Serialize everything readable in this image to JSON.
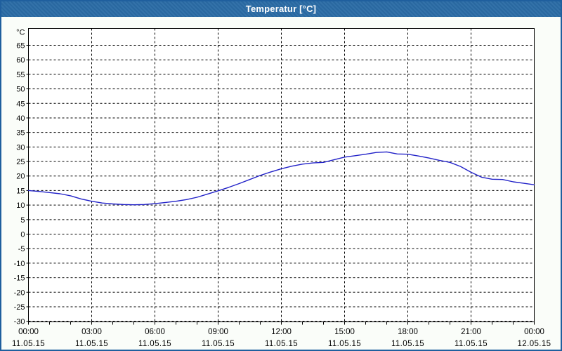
{
  "window": {
    "title": "Temperatur [°C]"
  },
  "colors": {
    "titlebar": "#2b6ca6",
    "window_border": "#1f5f9e",
    "background": "#fafdf9",
    "plot_background": "#ffffff",
    "grid": "#000000",
    "axis": "#000000",
    "curve": "#2222c8",
    "tick_text": "#000000",
    "title_text": "#ffffff"
  },
  "chart_data": {
    "type": "line",
    "title": "Temperatur [°C]",
    "ylabel": "°C",
    "y_unit_label": "°C",
    "ylim": [
      -30.2,
      70.8
    ],
    "y_ticks": [
      65,
      60,
      55,
      50,
      45,
      40,
      35,
      30,
      25,
      20,
      15,
      10,
      5,
      0,
      -5,
      -10,
      -15,
      -20,
      -25,
      -30
    ],
    "xlim_hours": [
      0,
      24
    ],
    "minor_x_tick_every_hours": 1,
    "grid": "dashed black, horizontal every 5 °C, vertical every 3 h",
    "legend": "none",
    "x_ticks": [
      {
        "hour": 0,
        "time": "00:00",
        "date": "11.05.15"
      },
      {
        "hour": 3,
        "time": "03:00",
        "date": "11.05.15"
      },
      {
        "hour": 6,
        "time": "06:00",
        "date": "11.05.15"
      },
      {
        "hour": 9,
        "time": "09:00",
        "date": "11.05.15"
      },
      {
        "hour": 12,
        "time": "12:00",
        "date": "11.05.15"
      },
      {
        "hour": 15,
        "time": "15:00",
        "date": "11.05.15"
      },
      {
        "hour": 18,
        "time": "18:00",
        "date": "11.05.15"
      },
      {
        "hour": 21,
        "time": "21:00",
        "date": "11.05.15"
      },
      {
        "hour": 24,
        "time": "00:00",
        "date": "12.05.15"
      }
    ],
    "series": [
      {
        "name": "Temperatur",
        "unit": "°C",
        "color": "#2222c8",
        "points": [
          [
            0,
            15.0
          ],
          [
            0.5,
            14.7
          ],
          [
            1,
            14.3
          ],
          [
            1.5,
            13.9
          ],
          [
            2,
            13.2
          ],
          [
            2.5,
            12.1
          ],
          [
            3,
            11.3
          ],
          [
            3.5,
            10.7
          ],
          [
            4,
            10.4
          ],
          [
            4.5,
            10.2
          ],
          [
            5,
            10.1
          ],
          [
            5.5,
            10.2
          ],
          [
            6,
            10.5
          ],
          [
            6.5,
            10.9
          ],
          [
            7,
            11.3
          ],
          [
            7.5,
            11.9
          ],
          [
            8,
            12.7
          ],
          [
            8.5,
            13.8
          ],
          [
            9,
            14.9
          ],
          [
            9.5,
            16.1
          ],
          [
            10,
            17.4
          ],
          [
            10.5,
            18.8
          ],
          [
            11,
            20.2
          ],
          [
            11.5,
            21.4
          ],
          [
            12,
            22.5
          ],
          [
            12.5,
            23.4
          ],
          [
            13,
            24.1
          ],
          [
            13.5,
            24.5
          ],
          [
            14,
            24.7
          ],
          [
            14.5,
            25.6
          ],
          [
            15,
            26.5
          ],
          [
            15.5,
            27.0
          ],
          [
            16,
            27.5
          ],
          [
            16.5,
            28.1
          ],
          [
            17,
            28.3
          ],
          [
            17.5,
            27.6
          ],
          [
            18,
            27.5
          ],
          [
            18.5,
            26.9
          ],
          [
            19,
            26.2
          ],
          [
            19.5,
            25.4
          ],
          [
            20,
            24.7
          ],
          [
            20.5,
            23.3
          ],
          [
            21,
            21.3
          ],
          [
            21.5,
            19.6
          ],
          [
            22,
            18.9
          ],
          [
            22.5,
            18.8
          ],
          [
            23,
            18.0
          ],
          [
            23.5,
            17.5
          ],
          [
            24,
            17.0
          ]
        ]
      }
    ]
  }
}
